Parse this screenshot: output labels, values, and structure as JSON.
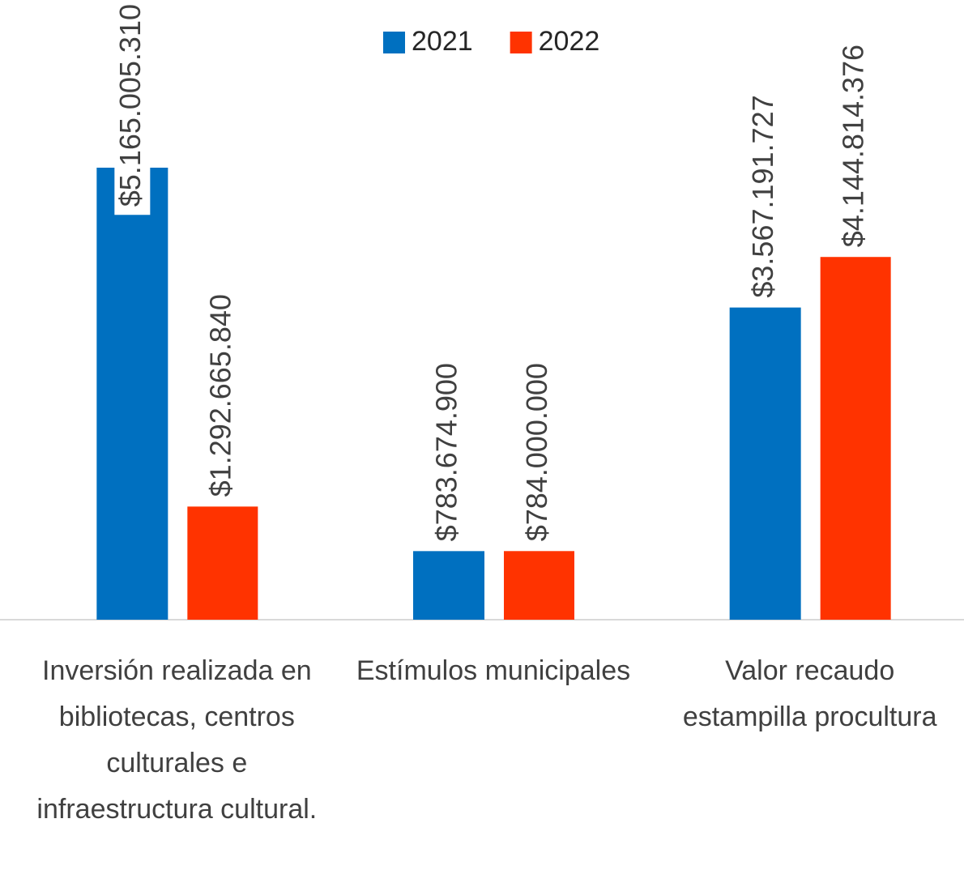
{
  "chart_data": {
    "type": "bar",
    "categories": [
      "Inversión realizada en bibliotecas, centros culturales e infraestructura cultural.",
      "Estímulos municipales",
      "Valor recaudo estampilla procultura"
    ],
    "series": [
      {
        "name": "2021",
        "color": "#0070c0",
        "values": [
          5165005310,
          783674900,
          3567191727
        ],
        "value_labels": [
          "$5.165.005.310",
          "$783.674.900",
          "$3.567.191.727"
        ]
      },
      {
        "name": "2022",
        "color": "#ff3300",
        "values": [
          1292665840,
          784000000,
          4144814376
        ],
        "value_labels": [
          "$1.292.665.840",
          "$784.000.000",
          "$4.144.814.376"
        ]
      }
    ],
    "legend": "top"
  }
}
